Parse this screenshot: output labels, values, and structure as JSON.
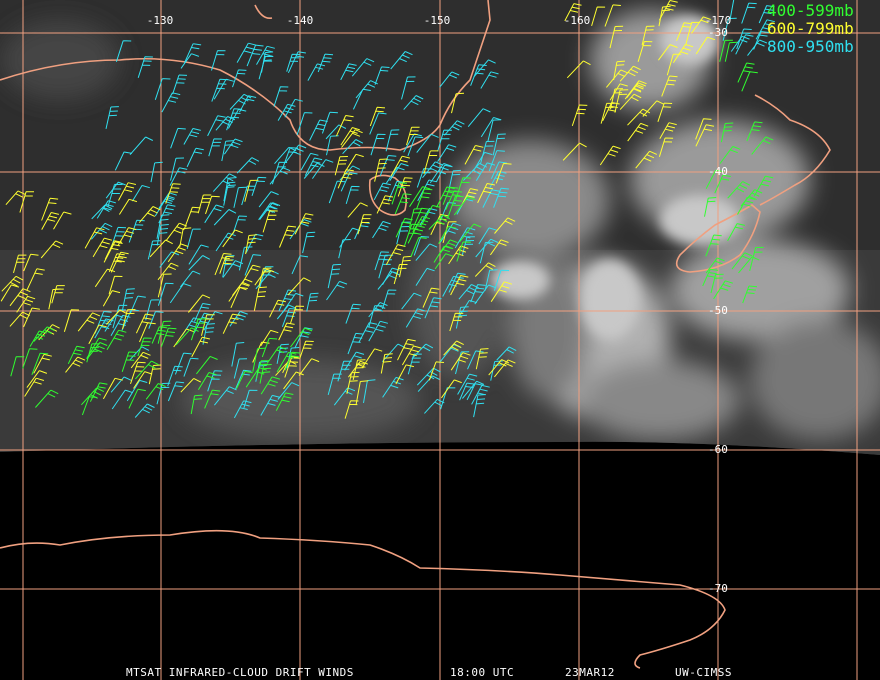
{
  "map": {
    "longitude_labels": [
      "-130",
      "-140",
      "-150",
      "-160",
      "-170"
    ],
    "latitude_labels": [
      "-30",
      "-40",
      "-50",
      "-60",
      "-70"
    ],
    "legend": [
      {
        "name": "400-599mb",
        "color": "#30ff30"
      },
      {
        "name": "600-799mb",
        "color": "#ffff30"
      },
      {
        "name": "800-950mb",
        "color": "#30e0f0"
      }
    ]
  },
  "footer": {
    "product": "MTSAT INFRARED-CLOUD DRIFT WINDS",
    "time": "18:00 UTC",
    "date": "23MAR12",
    "source": "UW-CIMSS"
  }
}
